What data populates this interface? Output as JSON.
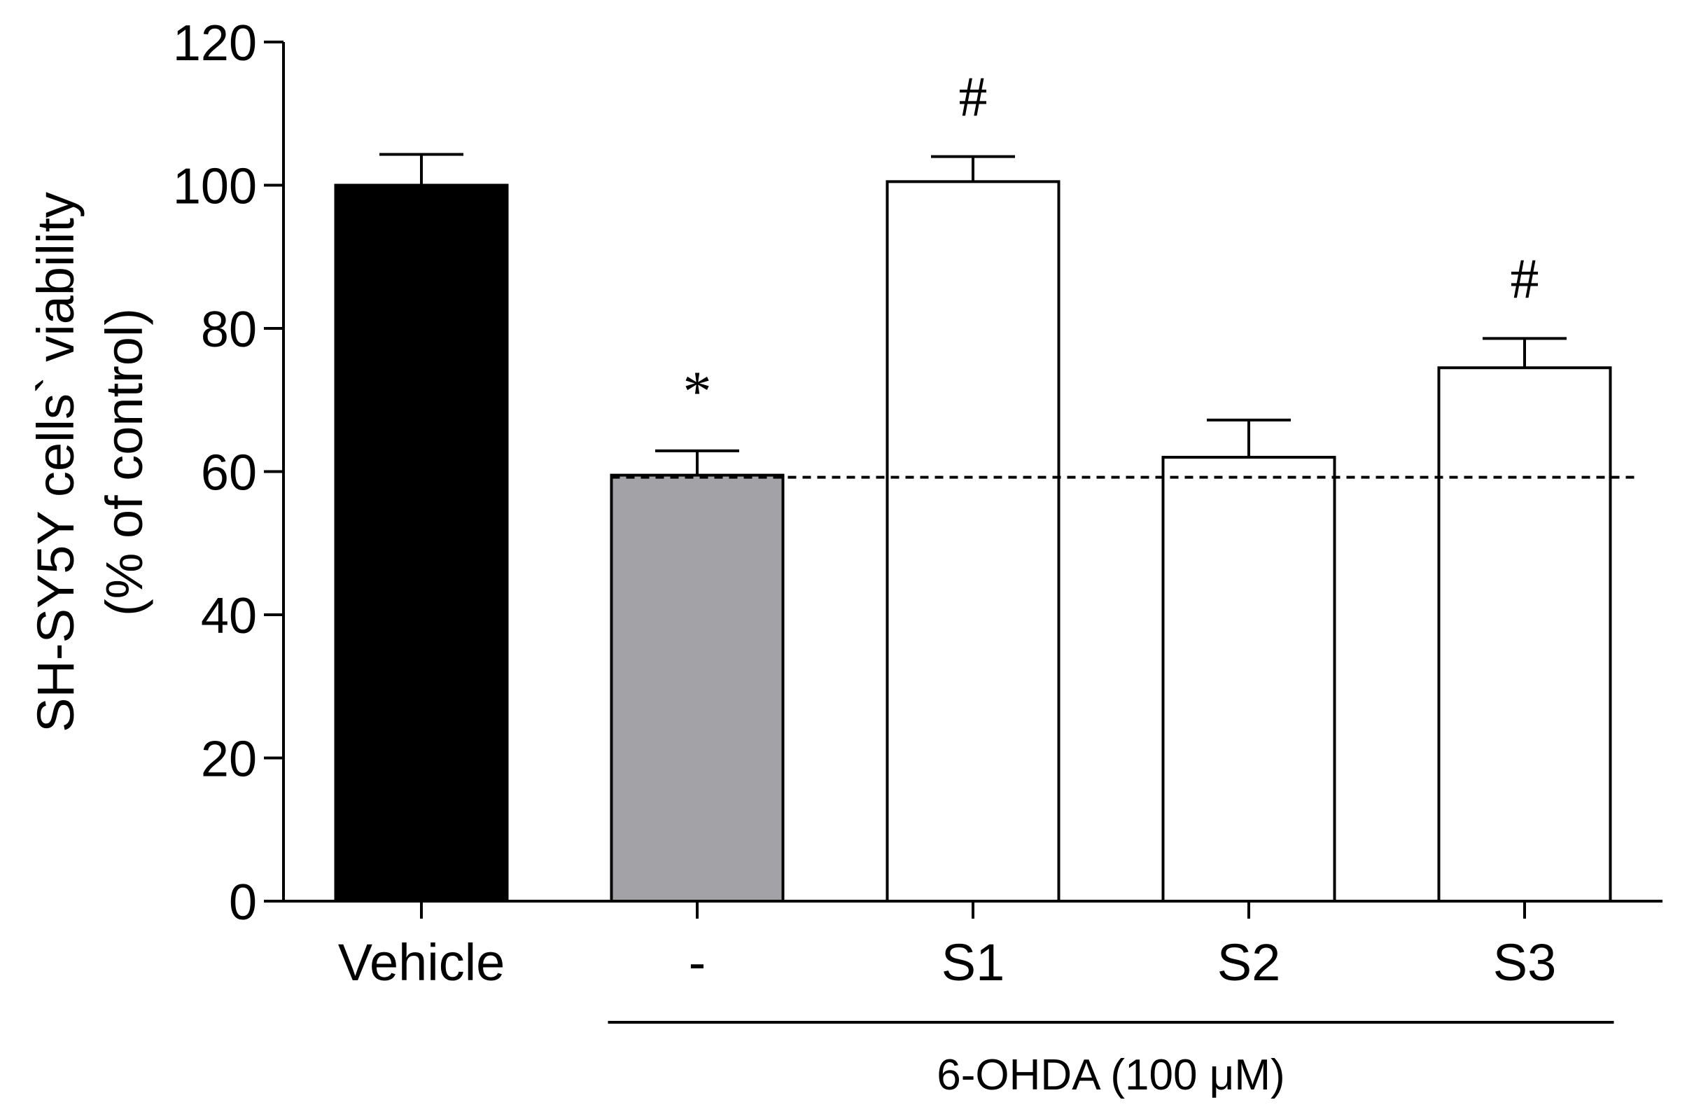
{
  "chart_data": {
    "type": "bar",
    "title": "",
    "ylabel_line1": "SH-SY5Y cells` viability",
    "ylabel_line2": "(% of control)",
    "xlabel": "",
    "ylim": [
      0,
      120
    ],
    "yticks": [
      0,
      20,
      40,
      60,
      80,
      100,
      120
    ],
    "categories": [
      "Vehicle",
      "-",
      "S1",
      "S2",
      "S3"
    ],
    "values": [
      100,
      59.5,
      100.5,
      62,
      74.5
    ],
    "errors": [
      4.3,
      3.4,
      3.5,
      5.2,
      4.1
    ],
    "colors": [
      "#000000",
      "#a3a3a7",
      "#ffffff",
      "#ffffff",
      "#ffffff"
    ],
    "significance": [
      "",
      "*",
      "#",
      "",
      "#"
    ],
    "reference_line": {
      "value": 59.2,
      "style": "dashed"
    },
    "group_bracket": {
      "label": "6-OHDA (100 μM)",
      "from_category": 1,
      "to_category": 4
    }
  }
}
